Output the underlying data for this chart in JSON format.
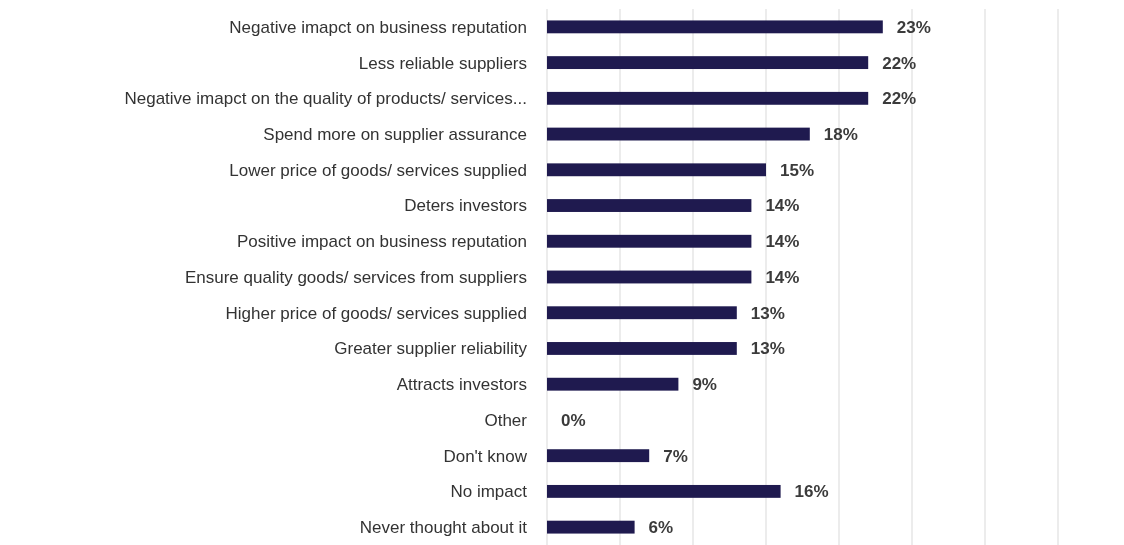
{
  "chart_data": {
    "type": "bar",
    "orientation": "horizontal",
    "categories": [
      "Negative imapct on business reputation",
      "Less reliable suppliers",
      "Negative imapct on the quality of products/ services...",
      "Spend more on supplier assurance",
      "Lower price of goods/ services supplied",
      "Deters investors",
      "Positive impact on business reputation",
      "Ensure quality goods/ services from suppliers",
      "Higher price of goods/ services supplied",
      "Greater supplier reliability",
      "Attracts investors",
      "Other",
      "Don't know",
      "No impact",
      "Never thought about it"
    ],
    "values": [
      23,
      22,
      22,
      18,
      15,
      14,
      14,
      14,
      13,
      13,
      9,
      0,
      7,
      16,
      6
    ],
    "value_labels": [
      "23%",
      "22%",
      "22%",
      "18%",
      "15%",
      "14%",
      "14%",
      "14%",
      "13%",
      "13%",
      "9%",
      "0%",
      "7%",
      "16%",
      "6%"
    ],
    "color": "#1f1a4f",
    "xlim": [
      0,
      35
    ],
    "xticks": [
      {
        "value": 0,
        "label": null
      },
      {
        "value": 5,
        "label": null
      },
      {
        "value": 10,
        "label": null
      },
      {
        "value": 15,
        "label": null
      },
      {
        "value": 20,
        "label": null
      },
      {
        "value": 25,
        "label": null
      },
      {
        "value": 30,
        "label": null
      },
      {
        "value": 35,
        "label": null
      }
    ],
    "grid": "x",
    "tick_labels": "y"
  }
}
